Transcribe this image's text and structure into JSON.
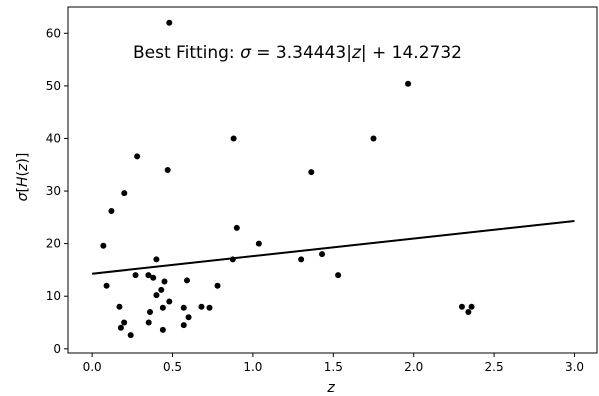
{
  "chart_data": {
    "type": "scatter",
    "annotation": {
      "prefix": "Best Fitting: ",
      "sigma": "σ",
      "eq": " = 3.34443|",
      "z": "z",
      "rest": "| + 14.2732"
    },
    "xlabel": "z",
    "ylabel": {
      "sigma": "σ",
      "open": "[",
      "H": "H",
      "paren_open": "(",
      "z": "z",
      "close": ")]"
    },
    "xlim": [
      -0.15,
      3.14
    ],
    "ylim": [
      -0.8,
      65
    ],
    "xticks": [
      0.0,
      0.5,
      1.0,
      1.5,
      2.0,
      2.5,
      3.0
    ],
    "xtick_labels": [
      "0.0",
      "0.5",
      "1.0",
      "1.5",
      "2.0",
      "2.5",
      "3.0"
    ],
    "yticks": [
      0,
      10,
      20,
      30,
      40,
      50,
      60
    ],
    "ytick_labels": [
      "0",
      "10",
      "20",
      "30",
      "40",
      "50",
      "60"
    ],
    "grid": false,
    "points": [
      {
        "x": 0.07,
        "y": 19.6
      },
      {
        "x": 0.09,
        "y": 12.0
      },
      {
        "x": 0.12,
        "y": 26.2
      },
      {
        "x": 0.17,
        "y": 8.0
      },
      {
        "x": 0.179,
        "y": 4.0
      },
      {
        "x": 0.199,
        "y": 5.0
      },
      {
        "x": 0.2,
        "y": 29.6
      },
      {
        "x": 0.24,
        "y": 2.6
      },
      {
        "x": 0.27,
        "y": 14.0
      },
      {
        "x": 0.28,
        "y": 36.6
      },
      {
        "x": 0.35,
        "y": 14.0
      },
      {
        "x": 0.352,
        "y": 5.0
      },
      {
        "x": 0.36,
        "y": 7.0
      },
      {
        "x": 0.38,
        "y": 13.5
      },
      {
        "x": 0.4,
        "y": 17.0
      },
      {
        "x": 0.4,
        "y": 10.2
      },
      {
        "x": 0.43,
        "y": 11.2
      },
      {
        "x": 0.44,
        "y": 3.6
      },
      {
        "x": 0.44,
        "y": 7.8
      },
      {
        "x": 0.45,
        "y": 12.8
      },
      {
        "x": 0.47,
        "y": 34.0
      },
      {
        "x": 0.48,
        "y": 9.0
      },
      {
        "x": 0.48,
        "y": 62.0
      },
      {
        "x": 0.57,
        "y": 4.5
      },
      {
        "x": 0.57,
        "y": 7.8
      },
      {
        "x": 0.59,
        "y": 13.0
      },
      {
        "x": 0.6,
        "y": 6.0
      },
      {
        "x": 0.68,
        "y": 8.0
      },
      {
        "x": 0.73,
        "y": 7.8
      },
      {
        "x": 0.78,
        "y": 12.0
      },
      {
        "x": 0.875,
        "y": 17.0
      },
      {
        "x": 0.88,
        "y": 40.0
      },
      {
        "x": 0.9,
        "y": 23.0
      },
      {
        "x": 1.037,
        "y": 20.0
      },
      {
        "x": 1.3,
        "y": 17.0
      },
      {
        "x": 1.363,
        "y": 33.6
      },
      {
        "x": 1.43,
        "y": 18.0
      },
      {
        "x": 1.53,
        "y": 14.0
      },
      {
        "x": 1.75,
        "y": 40.0
      },
      {
        "x": 1.965,
        "y": 50.4
      },
      {
        "x": 2.3,
        "y": 8.0
      },
      {
        "x": 2.34,
        "y": 7.0
      },
      {
        "x": 2.36,
        "y": 8.0
      }
    ],
    "fit_line": {
      "slope": 3.34443,
      "intercept": 14.2732,
      "x_range": [
        0.0,
        3.0
      ]
    },
    "colors": {
      "points": "#000000",
      "line": "#000000",
      "axes": "#000000",
      "background": "#ffffff"
    }
  }
}
